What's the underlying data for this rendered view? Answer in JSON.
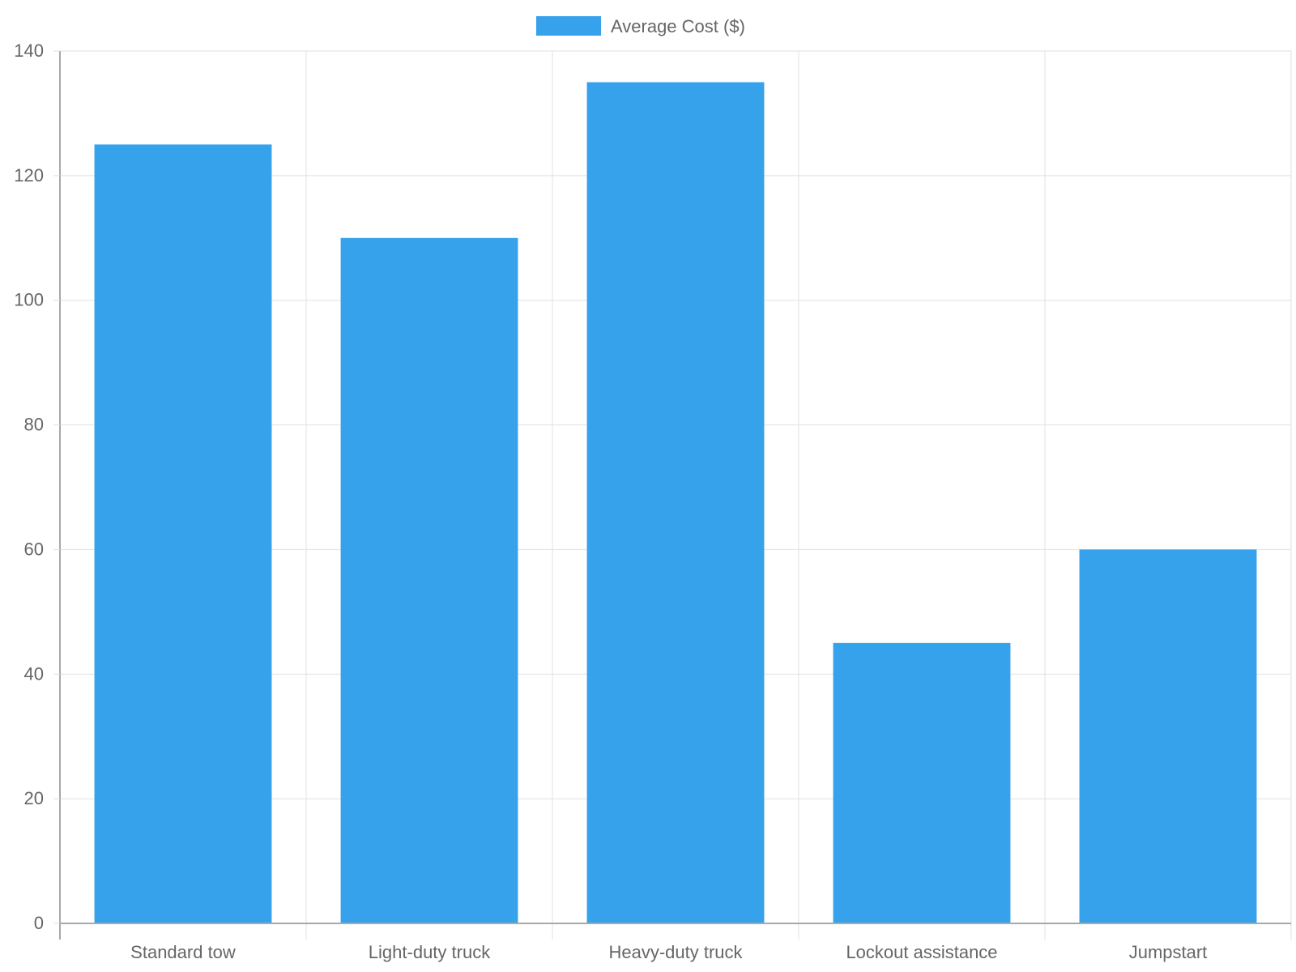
{
  "chart_data": {
    "type": "bar",
    "categories": [
      "Standard tow",
      "Light-duty truck",
      "Heavy-duty truck",
      "Lockout assistance",
      "Jumpstart"
    ],
    "series": [
      {
        "name": "Average Cost ($)",
        "values": [
          125,
          110,
          135,
          45,
          60
        ],
        "color": "#36a2eb"
      }
    ],
    "title": "",
    "xlabel": "",
    "ylabel": "",
    "ylim": [
      0,
      140
    ],
    "yticks": [
      "0",
      "20",
      "40",
      "60",
      "80",
      "100",
      "120",
      "140"
    ],
    "grid": true,
    "legend_position": "top-center"
  },
  "colors": {
    "grid": "#e1e1e1",
    "axis": "#a8a8a8",
    "text": "#666666"
  }
}
